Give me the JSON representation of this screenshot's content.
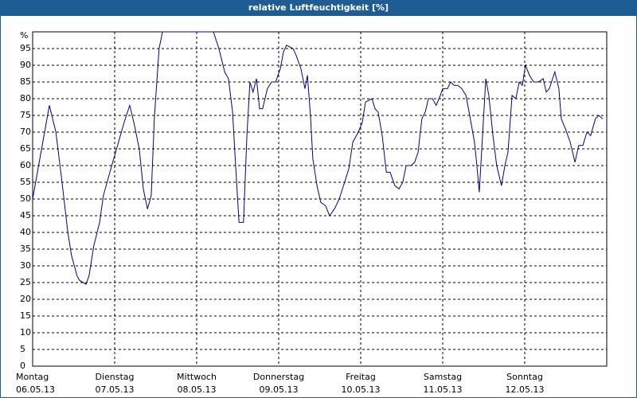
{
  "chart_data": {
    "type": "line",
    "title": "relative Luftfeuchtigkeit [%]",
    "x": [
      0,
      4.9,
      6.8,
      8.6,
      10.3,
      11.4,
      13.0,
      13.7,
      15.6,
      16.5,
      17.9,
      19.6,
      20.7,
      22.6,
      24,
      25.4,
      26.8,
      28.4,
      29.6,
      31.2,
      32.4,
      33.6,
      34.7,
      35.6,
      37.0,
      38.0,
      52.9,
      54.5,
      56.2,
      57.3,
      58.5,
      59.4,
      60.4,
      61.7,
      62.7,
      63.6,
      64.5,
      65.5,
      66.4,
      67.3,
      68.7,
      69.9,
      71.1,
      72.5,
      73.4,
      74.3,
      76.2,
      77.1,
      78.5,
      79.7,
      80.4,
      81.3,
      82.0,
      83.2,
      84.3,
      85.7,
      86.9,
      88.3,
      89.7,
      91.3,
      92.5,
      93.7,
      95.3,
      96.5,
      97.4,
      99.3,
      100.2,
      101.1,
      102.3,
      103.5,
      104.6,
      106.0,
      107.2,
      108.3,
      109.3,
      110.7,
      111.8,
      112.8,
      113.9,
      114.9,
      115.8,
      117.0,
      118.1,
      119.3,
      120.0,
      121.4,
      122.3,
      123.3,
      124.4,
      125.6,
      126.8,
      127.9,
      129.3,
      130.0,
      130.7,
      131.6,
      132.6,
      133.5,
      134.7,
      135.8,
      137.2,
      138.2,
      139.1,
      140.3,
      141.4,
      142.4,
      143.3,
      144.2,
      145.4,
      146.6,
      148.0,
      149.4,
      150.3,
      151.2,
      152.8,
      154.0,
      154.7,
      155.9,
      157.3,
      158.7,
      159.8,
      161.0,
      162.2,
      163.3,
      164.7,
      165.7,
      166.8
    ],
    "series": [
      {
        "color": "#00008b",
        "values": [
          50,
          78,
          70,
          55,
          40,
          33,
          27,
          25.7,
          24.5,
          27,
          36,
          43,
          51,
          58,
          63,
          68,
          73,
          78,
          73,
          65,
          53,
          47,
          51,
          74,
          95,
          100,
          100,
          95,
          88,
          86,
          76,
          60,
          43,
          43,
          69,
          85,
          82,
          86,
          77,
          77,
          83,
          85,
          85,
          89,
          94,
          96,
          95,
          93,
          89,
          83,
          87,
          75,
          62,
          54,
          49,
          48,
          45,
          47,
          50,
          55,
          59,
          67,
          70,
          73,
          79,
          80,
          77,
          76,
          69,
          58,
          58,
          54,
          53,
          55,
          60,
          60,
          61,
          64,
          74,
          76,
          80,
          80,
          78,
          81,
          83,
          83,
          85,
          84,
          84,
          83,
          81,
          75,
          67,
          60,
          52,
          68,
          86,
          81,
          69,
          60,
          54,
          60,
          64,
          81,
          80,
          85,
          84,
          90,
          87,
          85,
          85,
          86,
          82,
          83,
          88,
          83,
          74,
          71,
          67,
          61,
          66,
          66,
          70,
          69,
          74,
          75,
          74
        ]
      }
    ],
    "xlim": [
      0,
      168
    ],
    "xticks": [
      {
        "value": 0,
        "label": "Montag",
        "date": "06.05.13"
      },
      {
        "value": 24,
        "label": "Dienstag",
        "date": "07.05.13"
      },
      {
        "value": 48,
        "label": "Mittwoch",
        "date": "08.05.13"
      },
      {
        "value": 72,
        "label": "Donnerstag",
        "date": "09.05.13"
      },
      {
        "value": 96,
        "label": "Freitag",
        "date": "10.05.13"
      },
      {
        "value": 120,
        "label": "Samstag",
        "date": "11.05.13"
      },
      {
        "value": 144,
        "label": "Sonntag",
        "date": "12.05.13"
      }
    ],
    "ylim": [
      0,
      100
    ],
    "yticks": [
      0,
      5,
      10,
      15,
      20,
      25,
      30,
      35,
      40,
      45,
      50,
      55,
      60,
      65,
      70,
      75,
      80,
      85,
      90,
      95,
      {
        "value": 100,
        "label": "%"
      }
    ],
    "grid": true
  }
}
